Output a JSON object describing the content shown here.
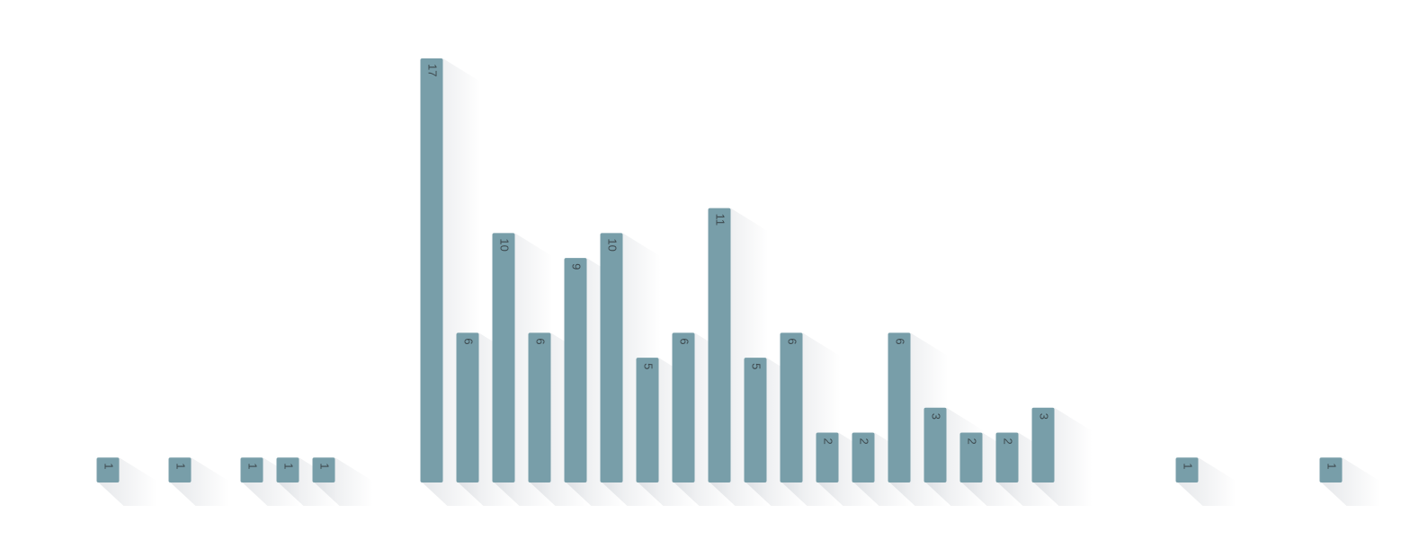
{
  "chart_data": {
    "type": "bar",
    "values": [
      1,
      null,
      1,
      null,
      1,
      1,
      1,
      null,
      null,
      17,
      6,
      10,
      6,
      9,
      10,
      5,
      6,
      11,
      5,
      6,
      2,
      2,
      6,
      3,
      2,
      2,
      3,
      null,
      null,
      null,
      1,
      null,
      null,
      null,
      1
    ],
    "color": "#789ea9",
    "ylim": [
      0,
      17
    ]
  }
}
